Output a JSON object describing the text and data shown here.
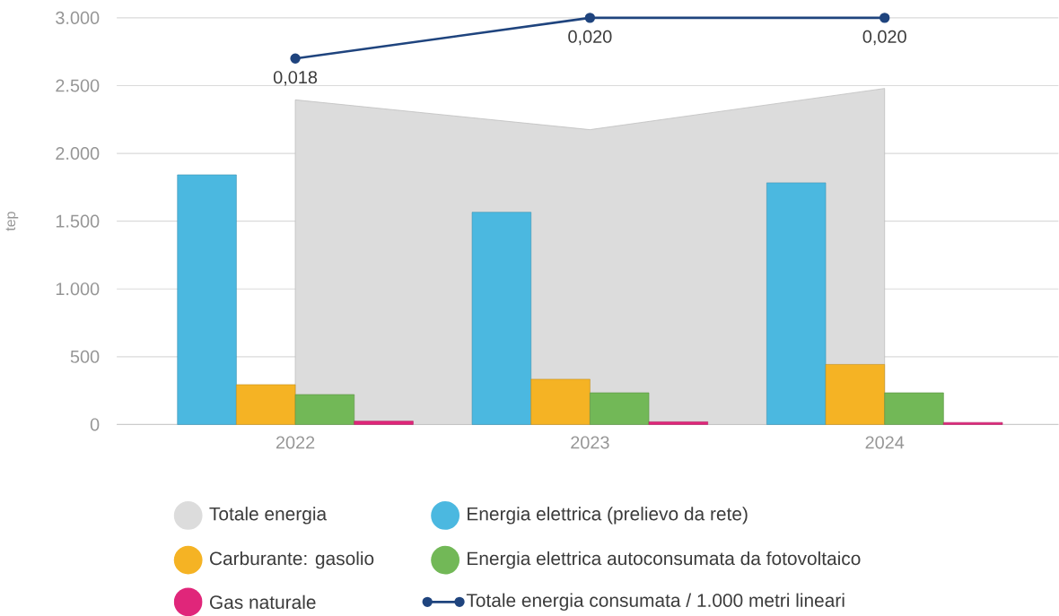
{
  "chart_data": {
    "type": "bar",
    "ylabel": "tep",
    "categories": [
      "2022",
      "2023",
      "2024"
    ],
    "series": [
      {
        "name": "Totale energia",
        "type": "area",
        "color": "#dcdcdc",
        "values": [
          2395,
          2175,
          2479
        ]
      },
      {
        "name": "Energia elettrica (prelievo da rete)",
        "color": "#4bb8e0",
        "values": [
          1842,
          1566,
          1783
        ]
      },
      {
        "name": "Carburante: gasolio",
        "color": "#f5b324",
        "values": [
          294,
          334,
          443
        ]
      },
      {
        "name": "Energia elettrica autoconsumata da fotovoltaico",
        "color": "#72b857",
        "values": [
          221,
          234,
          234
        ]
      },
      {
        "name": "Gas naturale",
        "color": "#e0267a",
        "values": [
          25,
          20,
          15
        ]
      },
      {
        "name": "Totale energia consumata / 1.000 metri lineari",
        "type": "line",
        "axis": "y2",
        "color": "#1f447e",
        "marker": "circle",
        "line_style": "solid",
        "values": [
          0.018,
          0.02,
          0.02
        ],
        "value_labels": [
          "0,018",
          "0,020",
          "0,020"
        ]
      }
    ],
    "ylim": [
      0,
      3000
    ],
    "yticks": [
      0,
      500,
      {
        "value": 1000,
        "label": "1.000"
      },
      {
        "value": 1500,
        "label": "1.500"
      },
      {
        "value": 2000,
        "label": "2.000"
      },
      {
        "value": 2500,
        "label": "2.500"
      },
      {
        "value": 3000,
        "label": "3.000"
      }
    ],
    "y2lim": [
      0,
      0.02
    ],
    "grid": "y",
    "legend": "bottom"
  }
}
